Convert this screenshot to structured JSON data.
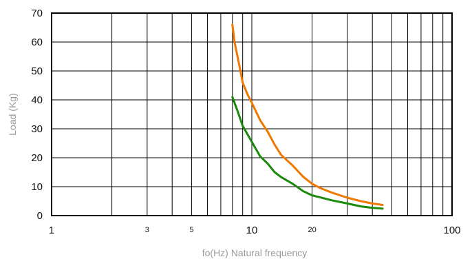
{
  "chart_data": {
    "type": "line",
    "title": "",
    "xlabel": "fo(Hz) Natural frequency",
    "ylabel": "Load (Kg)",
    "xscale": "log",
    "xlim": [
      1,
      100
    ],
    "ylim": [
      0,
      70
    ],
    "grid": true,
    "legend": "none",
    "x_tick_labels": [
      {
        "value": 1,
        "label": "1",
        "size": "large"
      },
      {
        "value": 3,
        "label": "3",
        "size": "small"
      },
      {
        "value": 5,
        "label": "5",
        "size": "small"
      },
      {
        "value": 10,
        "label": "10",
        "size": "large"
      },
      {
        "value": 20,
        "label": "20",
        "size": "small"
      },
      {
        "value": 100,
        "label": "100",
        "size": "large"
      }
    ],
    "y_tick_labels": [
      "0",
      "10",
      "20",
      "30",
      "40",
      "50",
      "60",
      "70"
    ],
    "x_grid_values": [
      2,
      3,
      4,
      5,
      6,
      7,
      8,
      9,
      10,
      20,
      30,
      40,
      50,
      60,
      70,
      80,
      90
    ],
    "y_grid_values": [
      10,
      20,
      30,
      40,
      50,
      60
    ],
    "series": [
      {
        "color": "#f07800",
        "points": [
          [
            8,
            66
          ],
          [
            8.2,
            60
          ],
          [
            8.6,
            53
          ],
          [
            9,
            46
          ],
          [
            9.5,
            42
          ],
          [
            10,
            39
          ],
          [
            11,
            33
          ],
          [
            12,
            29
          ],
          [
            13,
            24.5
          ],
          [
            14,
            21
          ],
          [
            16,
            17.3
          ],
          [
            18,
            13.5
          ],
          [
            20,
            11
          ],
          [
            22,
            9.5
          ],
          [
            25,
            8
          ],
          [
            30,
            6.2
          ],
          [
            35,
            5.0
          ],
          [
            40,
            4.2
          ],
          [
            45,
            3.7
          ]
        ]
      },
      {
        "color": "#1a8a0a",
        "points": [
          [
            8,
            41
          ],
          [
            8.5,
            36
          ],
          [
            9,
            31
          ],
          [
            10,
            25.5
          ],
          [
            11,
            20.5
          ],
          [
            12,
            18
          ],
          [
            13,
            15
          ],
          [
            14,
            13.3
          ],
          [
            16,
            11
          ],
          [
            18,
            8.5
          ],
          [
            20,
            7
          ],
          [
            25,
            5.3
          ],
          [
            30,
            4.2
          ],
          [
            35,
            3.2
          ],
          [
            40,
            2.7
          ],
          [
            45,
            2.4
          ]
        ]
      }
    ]
  }
}
